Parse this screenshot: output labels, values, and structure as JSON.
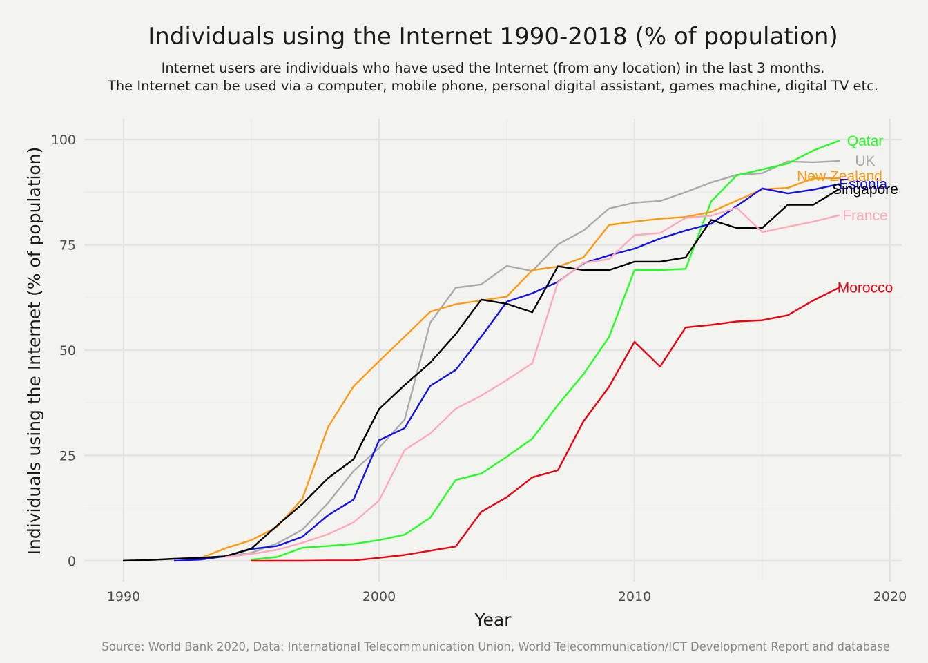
{
  "chart_data": {
    "type": "line",
    "title": "Individuals using the Internet 1990-2018 (% of population)",
    "subtitle": [
      "Internet users are individuals who have used the Internet (from any location) in the last 3 months.",
      "The Internet can be used via a computer, mobile phone, personal digital assistant, games machine, digital TV etc."
    ],
    "xlabel": "Year",
    "ylabel": "Individuals using the Internet (% of population)",
    "caption": "Source: World Bank 2020, Data: International Telecommunication Union, World Telecommunication/ICT Development Report and database",
    "xlim": [
      1990,
      2020
    ],
    "ylim": [
      0,
      100
    ],
    "xticks": [
      1990,
      2000,
      2010,
      2020
    ],
    "yticks": [
      0,
      25,
      50,
      75,
      100
    ],
    "grid": true,
    "legend": "none (direct labels at line ends)",
    "series": [
      {
        "name": "UK",
        "color": "#aaaaaa",
        "x": [
          1990,
          1991,
          1992,
          1993,
          1994,
          1995,
          1996,
          1997,
          1998,
          1999,
          2000,
          2001,
          2002,
          2003,
          2004,
          2005,
          2006,
          2007,
          2008,
          2009,
          2010,
          2011,
          2012,
          2013,
          2014,
          2015,
          2016,
          2017,
          2018
        ],
        "y": [
          0.1,
          0.2,
          0.5,
          0.8,
          1.0,
          1.9,
          4.1,
          7.4,
          13.7,
          21.3,
          26.8,
          33.5,
          56.5,
          64.8,
          65.6,
          70.0,
          68.8,
          75.1,
          78.4,
          83.6,
          85.0,
          85.4,
          87.5,
          89.8,
          91.6,
          92.0,
          94.8,
          94.6,
          94.9
        ]
      },
      {
        "name": "Qatar",
        "color": "#22ff22",
        "x": [
          1995,
          1996,
          1997,
          1998,
          1999,
          2000,
          2001,
          2002,
          2003,
          2004,
          2005,
          2006,
          2007,
          2008,
          2009,
          2010,
          2011,
          2012,
          2013,
          2014,
          2015,
          2016,
          2017,
          2018
        ],
        "y": [
          0.3,
          0.9,
          3.1,
          3.5,
          4.0,
          4.9,
          6.2,
          10.2,
          19.2,
          20.7,
          24.7,
          29.0,
          37.0,
          44.3,
          53.1,
          69.0,
          69.0,
          69.3,
          85.3,
          91.5,
          92.9,
          94.3,
          97.4,
          99.7
        ]
      },
      {
        "name": "New Zealand",
        "color": "#ff9911",
        "x": [
          1993,
          1994,
          1995,
          1996,
          1997,
          1998,
          1999,
          2000,
          2001,
          2002,
          2003,
          2004,
          2005,
          2006,
          2007,
          2008,
          2009,
          2010,
          2011,
          2012,
          2013,
          2014,
          2015,
          2016,
          2017,
          2018
        ],
        "y": [
          0.6,
          3.0,
          4.9,
          8.0,
          14.7,
          31.7,
          41.4,
          47.4,
          53.2,
          59.1,
          60.9,
          61.8,
          62.7,
          69.0,
          69.8,
          72.0,
          79.7,
          80.5,
          81.2,
          81.6,
          82.8,
          85.5,
          88.2,
          88.5,
          90.8,
          90.8
        ]
      },
      {
        "name": "Estonia",
        "color": "#1111ee",
        "x": [
          1992,
          1993,
          1994,
          1995,
          1996,
          1997,
          1998,
          1999,
          2000,
          2001,
          2002,
          2003,
          2004,
          2005,
          2006,
          2007,
          2008,
          2009,
          2010,
          2011,
          2012,
          2013,
          2014,
          2015,
          2016,
          2017,
          2018
        ],
        "y": [
          0.0,
          0.3,
          1.1,
          2.8,
          3.5,
          5.7,
          10.8,
          14.5,
          28.6,
          31.5,
          41.5,
          45.3,
          53.2,
          61.5,
          63.5,
          66.2,
          70.6,
          72.5,
          74.1,
          76.5,
          78.4,
          80.0,
          84.2,
          88.4,
          87.2,
          88.1,
          89.4
        ]
      },
      {
        "name": "Singapore",
        "color": "#000000",
        "x": [
          1990,
          1991,
          1992,
          1993,
          1994,
          1995,
          1996,
          1997,
          1998,
          1999,
          2000,
          2001,
          2002,
          2003,
          2004,
          2005,
          2006,
          2007,
          2008,
          2009,
          2010,
          2011,
          2012,
          2013,
          2014,
          2015,
          2016,
          2017,
          2018
        ],
        "y": [
          0.0,
          0.2,
          0.5,
          0.7,
          1.1,
          2.9,
          8.3,
          13.5,
          19.6,
          24.1,
          36.0,
          41.7,
          47.0,
          53.8,
          62.0,
          61.0,
          59.0,
          69.9,
          69.0,
          69.0,
          71.0,
          71.0,
          72.0,
          80.9,
          79.0,
          79.0,
          84.5,
          84.5,
          88.2
        ]
      },
      {
        "name": "France",
        "color": "#ffaabb",
        "x": [
          1994,
          1995,
          1996,
          1997,
          1998,
          1999,
          2000,
          2001,
          2002,
          2003,
          2004,
          2005,
          2006,
          2007,
          2008,
          2009,
          2010,
          2011,
          2012,
          2013,
          2014,
          2015,
          2016,
          2017,
          2018
        ],
        "y": [
          0.9,
          1.6,
          2.6,
          4.3,
          6.3,
          9.1,
          14.3,
          26.3,
          30.2,
          36.1,
          39.2,
          42.9,
          46.9,
          66.1,
          70.7,
          71.6,
          77.3,
          77.8,
          81.4,
          81.9,
          83.8,
          78.0,
          79.3,
          80.5,
          82.0
        ]
      },
      {
        "name": "Morocco",
        "color": "#ee0011",
        "x": [
          1995,
          1996,
          1997,
          1998,
          1999,
          2000,
          2001,
          2002,
          2003,
          2004,
          2005,
          2006,
          2007,
          2008,
          2009,
          2010,
          2011,
          2012,
          2013,
          2014,
          2015,
          2016,
          2017,
          2018
        ],
        "y": [
          0.0,
          0.0,
          0.0,
          0.1,
          0.1,
          0.7,
          1.4,
          2.4,
          3.4,
          11.6,
          15.1,
          19.8,
          21.5,
          33.1,
          41.3,
          52.0,
          46.1,
          55.4,
          56.0,
          56.8,
          57.1,
          58.3,
          61.8,
          64.8
        ]
      }
    ]
  }
}
